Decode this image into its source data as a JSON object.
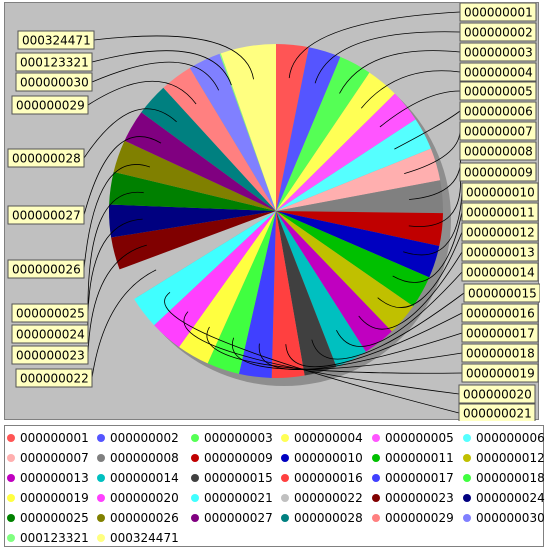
{
  "chart_data": {
    "type": "pie",
    "title": "",
    "start_angle_deg": 90,
    "direction": "clockwise",
    "slices": [
      {
        "label": "000000001",
        "value": 1,
        "color": "#ff5555"
      },
      {
        "label": "000000002",
        "value": 1,
        "color": "#5555ff"
      },
      {
        "label": "000000003",
        "value": 1,
        "color": "#55ff55"
      },
      {
        "label": "000000004",
        "value": 1,
        "color": "#ffff55"
      },
      {
        "label": "000000005",
        "value": 1,
        "color": "#ff55ff"
      },
      {
        "label": "000000006",
        "value": 1,
        "color": "#55ffff"
      },
      {
        "label": "000000007",
        "value": 1,
        "color": "#ffafaf"
      },
      {
        "label": "000000008",
        "value": 1,
        "color": "#808080"
      },
      {
        "label": "000000009",
        "value": 1,
        "color": "#c00000"
      },
      {
        "label": "000000010",
        "value": 1,
        "color": "#0000c0"
      },
      {
        "label": "000000011",
        "value": 1,
        "color": "#00c000"
      },
      {
        "label": "000000012",
        "value": 1,
        "color": "#c0c000"
      },
      {
        "label": "000000013",
        "value": 1,
        "color": "#c000c0"
      },
      {
        "label": "000000014",
        "value": 1,
        "color": "#00c0c0"
      },
      {
        "label": "000000015",
        "value": 1,
        "color": "#404040"
      },
      {
        "label": "000000016",
        "value": 1,
        "color": "#ff4040"
      },
      {
        "label": "000000017",
        "value": 1,
        "color": "#4040ff"
      },
      {
        "label": "000000018",
        "value": 1,
        "color": "#40ff40"
      },
      {
        "label": "000000019",
        "value": 1,
        "color": "#ffff40"
      },
      {
        "label": "000000020",
        "value": 1,
        "color": "#ff40ff"
      },
      {
        "label": "000000021",
        "value": 1,
        "color": "#40ffff"
      },
      {
        "label": "000000022",
        "value": 1,
        "color": "#c0c0c0"
      },
      {
        "label": "000000023",
        "value": 1,
        "color": "#800000"
      },
      {
        "label": "000000024",
        "value": 1,
        "color": "#000080"
      },
      {
        "label": "000000025",
        "value": 1,
        "color": "#008000"
      },
      {
        "label": "000000026",
        "value": 1,
        "color": "#808000"
      },
      {
        "label": "000000027",
        "value": 1,
        "color": "#800080"
      },
      {
        "label": "000000028",
        "value": 1,
        "color": "#008080"
      },
      {
        "label": "000000029",
        "value": 1,
        "color": "#ff8080"
      },
      {
        "label": "000000030",
        "value": 1,
        "color": "#8080ff"
      },
      {
        "label": "000123321",
        "value": 0.04,
        "color": "#80ff80"
      },
      {
        "label": "000324471",
        "value": 1.7,
        "color": "#ffff80"
      }
    ],
    "legend_placement": "bottom"
  }
}
